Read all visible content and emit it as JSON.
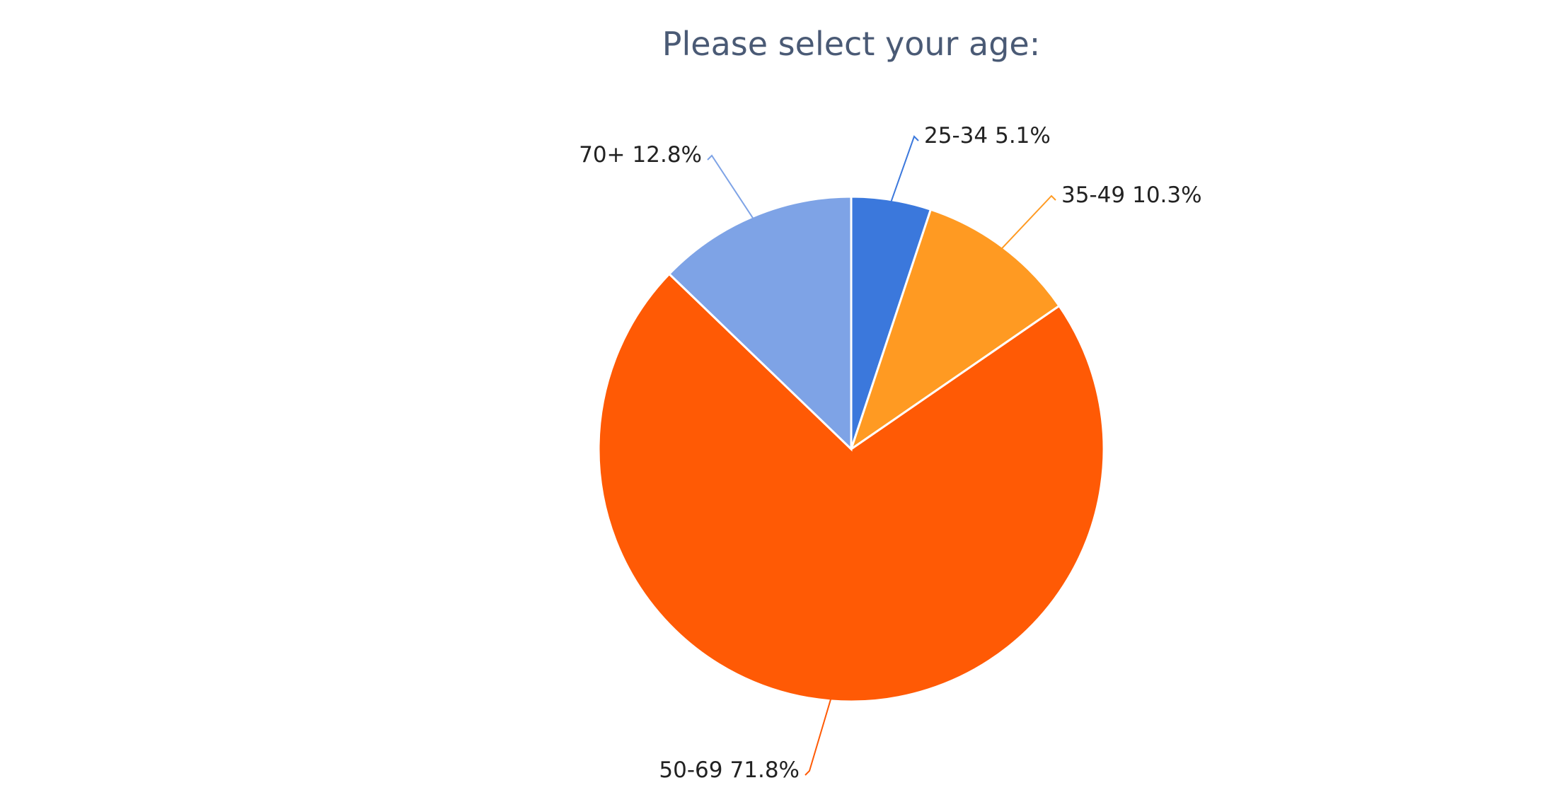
{
  "chart_data": {
    "type": "pie",
    "title": "Please select your age:",
    "categories": [
      "25-34",
      "35-49",
      "50-69",
      "70+"
    ],
    "values": [
      5.1,
      10.3,
      71.8,
      12.8
    ],
    "value_labels": [
      "5.1%",
      "10.3%",
      "71.8%",
      "12.8%"
    ],
    "colors": [
      "#3b78dc",
      "#ff9a22",
      "#ff5a05",
      "#7ea3e6"
    ]
  }
}
